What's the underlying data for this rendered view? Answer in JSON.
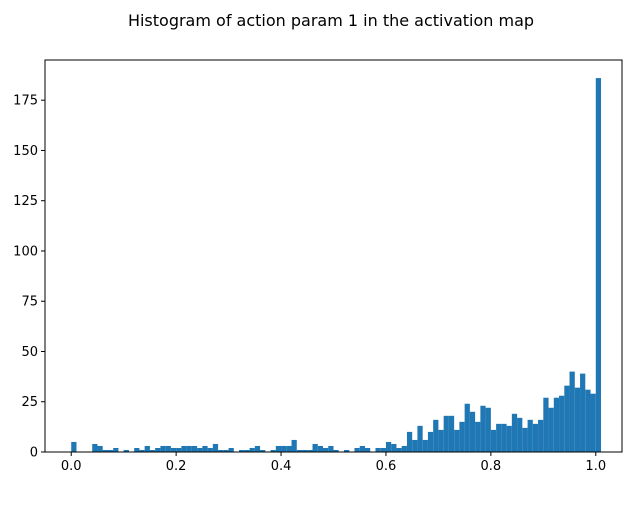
{
  "chart_data": {
    "type": "bar",
    "title": "Histogram of action param 1 in the activation map",
    "xlabel": "",
    "ylabel": "",
    "xlim": [
      -0.05,
      1.05
    ],
    "ylim": [
      0,
      195
    ],
    "xticks": [
      0.0,
      0.2,
      0.4,
      0.6,
      0.8,
      1.0
    ],
    "xtick_labels": [
      "0.0",
      "0.2",
      "0.4",
      "0.6",
      "0.8",
      "1.0"
    ],
    "yticks": [
      0,
      25,
      50,
      75,
      100,
      125,
      150,
      175
    ],
    "ytick_labels": [
      "0",
      "25",
      "50",
      "75",
      "100",
      "125",
      "150",
      "175"
    ],
    "grid": false,
    "bin_start": 0.0,
    "bin_width": 0.01,
    "bar_color": "#1f77b4",
    "values": [
      5,
      0,
      0,
      0,
      4,
      3,
      1,
      1,
      2,
      0,
      1,
      0,
      2,
      1,
      3,
      1,
      2,
      3,
      3,
      2,
      2,
      3,
      3,
      3,
      2,
      3,
      2,
      4,
      1,
      1,
      2,
      0,
      1,
      1,
      2,
      3,
      1,
      0,
      1,
      3,
      3,
      3,
      6,
      1,
      1,
      1,
      4,
      3,
      2,
      3,
      1,
      0,
      1,
      0,
      2,
      3,
      2,
      0,
      2,
      2,
      5,
      4,
      2,
      3,
      10,
      6,
      13,
      6,
      10,
      16,
      11,
      18,
      18,
      11,
      15,
      24,
      20,
      15,
      23,
      22,
      11,
      14,
      14,
      13,
      19,
      17,
      12,
      16,
      14,
      16,
      27,
      22,
      27,
      28,
      33,
      40,
      32,
      39,
      31,
      29,
      186
    ]
  }
}
